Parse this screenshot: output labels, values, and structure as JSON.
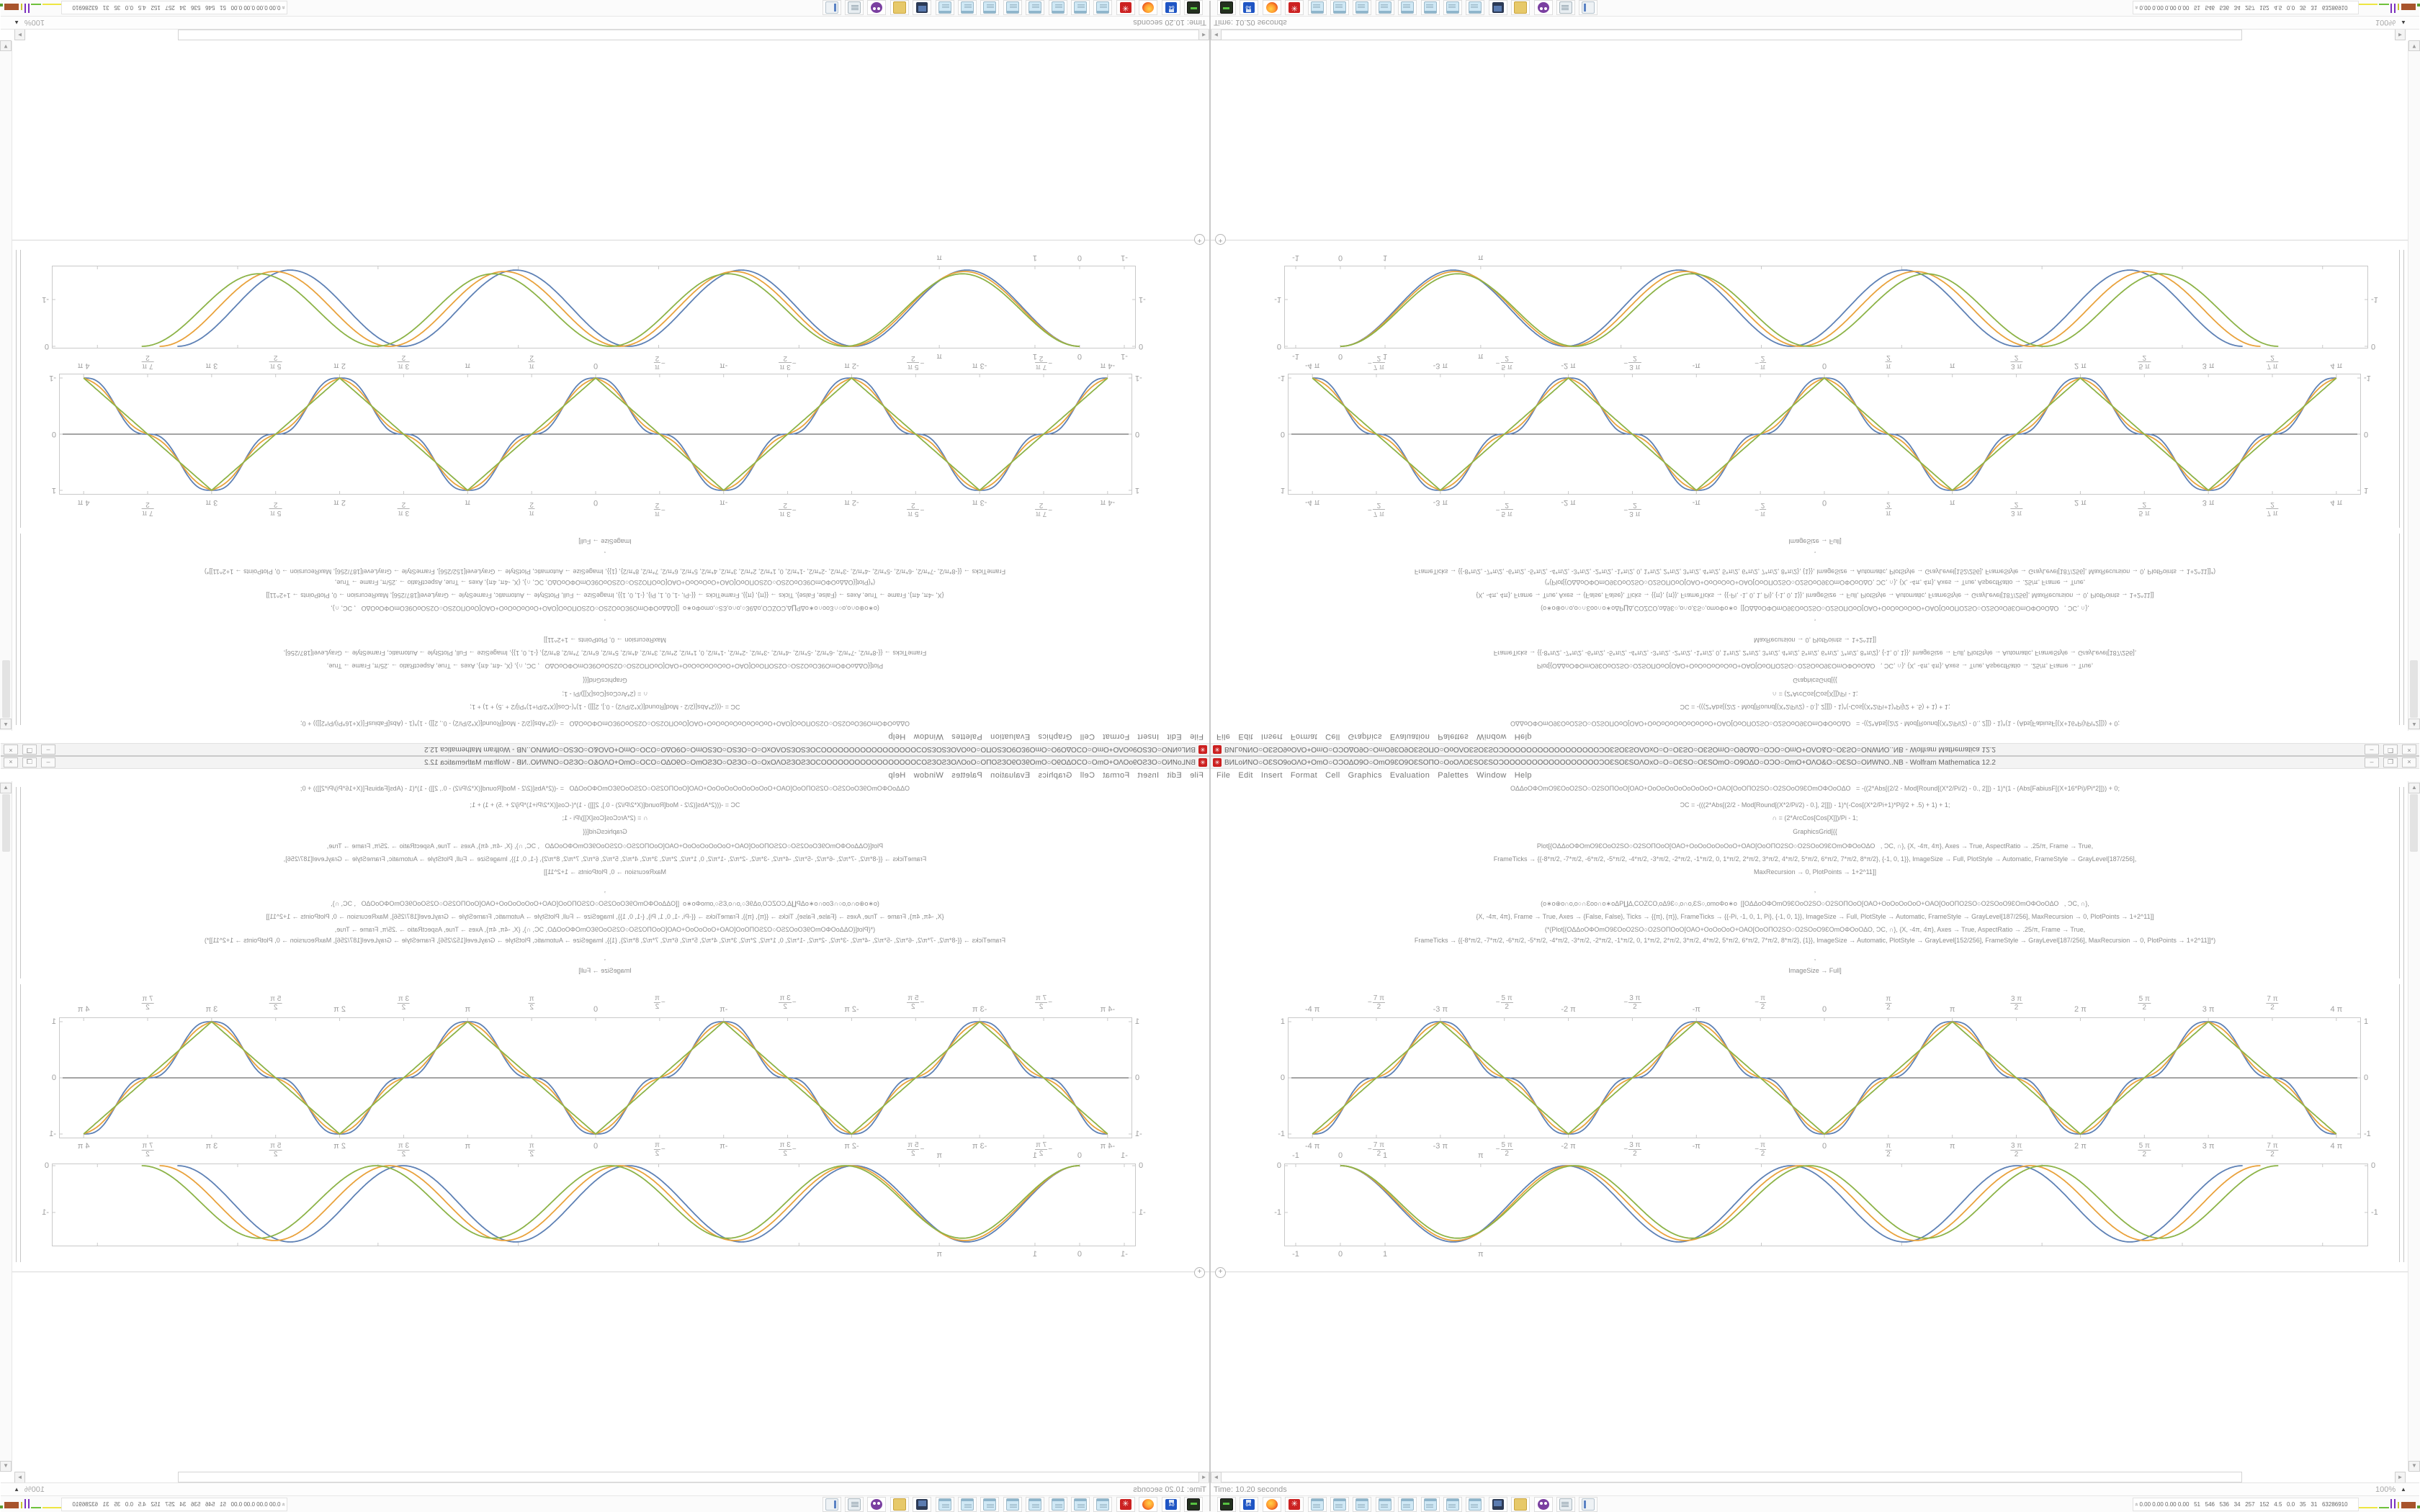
{
  "window": {
    "title": "BИLoИNΟ○ΟƐSΟ9oΟΛΟ+ΟmΟ○ΟƆΟΔΟ9Ο○ΟmΟ9ƐΟ9ΟƐSΟΠΟ○ΟoΟΛΟƐSΟƐSΟƆΟΟΟΟΟΟΟΟΟΟΟΟΟΟΟΟΟƆΟƐSΟƐSΟΛΟxΟ○Ο○ΟƐSΟ○ΟƐSΟmΟ○Ο9ΟΔΟ○ΟƆΟ○ΟmΟ+ΟΛΟ&Ο○ΟƐSΟ○ΟИWNΟ..NB - Wolfram Mathematica 12.2",
    "app_icon": "mathematica-spikey",
    "controls": {
      "minimize": "–",
      "restore": "❐",
      "close": "×"
    },
    "menu": [
      "File",
      "Edit",
      "Insert",
      "Format",
      "Cell",
      "Graphics",
      "Evaluation",
      "Palettes",
      "Window",
      "Help"
    ]
  },
  "code": {
    "lines": [
      "ΟΔΔοΟΦΟmΟ9ƐΟοΟ2SΟ○Ο2SΟΠΟοΟ[ΟΑΟ+ΟοΟοΟοΟοΟοΟοΟοΟ+ΟΑΟ[ΟοΟΠΟ2SΟ○Ο2SΟοΟ9ƐΟmΟΦΟοΟΔΟ   = -((2*Abs[(2/2 - Mod[Round[(X*2/Pi/2) - 0., 2]]) - 1)*(1 - (Abs[FabiusF[(X+16*Pi)/Pi*2]])) + 0;",
      "ƆC = -(((2*Abs[(2/2 - Mod[Round[(X*2/Pi/2) - 0.], 2]]]) - 1)*(-Cos[(X*2/Pi+1)*Pi]/2 + .5) + 1) + 1;",
      "∩ = (2*ArcCos[Cos[X]])/Pi - 1;",
      "GraphicsGrid[{{",
      "Plot[{ΟΔΔοΟΦΟmΟ9ƐΟοΟ2SΟ○Ο2SΟΠΟοΟ[ΟΑΟ+ΟοΟοΟοΟοΟοΟ+ΟΑΟ[ΟοΟΠΟ2SΟ○Ο2SΟοΟ9ƐΟmΟΦΟοΟΔΟ   , ƆC, ∩}, {X, -4π, 4π}, Axes → True, AspectRatio → .25/π, Frame → True,",
      "FrameTicks → {{-8*π/2, -7*π/2, -6*π/2, -5*π/2, -4*π/2, -3*π/2, -2*π/2, -1*π/2, 0, 1*π/2, 2*π/2, 3*π/2, 4*π/2, 5*π/2, 6*π/2, 7*π/2, 8*π/2}, {-1, 0, 1}}, ImageSize → Full, PlotStyle → Automatic, FrameStyle → GrayLevel[187/256],",
      "MaxRecursion → 0, PlotPoints → 1+2^11]]",
      ",",
      "(ο∗ο⊕ο∩ο‚ο○∩Ɛοο∩ο∗οΔΡ∐Δ‚CΟZCΟ‚οΔ9Ɛ○‚ο∩ο‚ƐS○‚οmοΦο∗ο  [[ΟΔΔοΟΦΟmΟ9ƐΟοΟ2SΟ○Ο2SΟΠΟοΟ[ΟΑΟ+ΟοΟοΟοΟοΟ+ΟΑΟ[ΟοΟΠΟ2SΟ○Ο2SΟοΟ9ƐΟmΟΦΟοΟΔΟ   , ƆC, ∩},",
      "{X, -4π, 4π}, Frame → True, Axes → {False, False}, Ticks → {{π}, {π}}, FrameTicks → {{-Pi, -1, 0, 1, Pi}, {-1, 0, 1}}, ImageSize → Full, PlotStyle → Automatic, FrameStyle → GrayLevel[187/256], MaxRecursion → 0, PlotPoints → 1+2^11]]",
      "(*{Plot[{ΟΔΔοΟΦΟmΟ9ƐΟοΟ2SΟ○Ο2SΟΠΟοΟ[ΟΑΟ+ΟοΟοΟοΟ+ΟΑΟ[ΟοΟΠΟ2SΟ○Ο2SΟοΟ9ƐΟmΟΦΟοΟΔΟ, ƆC, ∩}, {X, -4π, 4π}, Axes → True, AspectRatio → .25/π, Frame → True,",
      "FrameTicks → {{-8*π/2, -7*π/2, -6*π/2, -5*π/2, -4*π/2, -3*π/2, -2*π/2, -1*π/2, 0, 1*π/2, 2*π/2, 3*π/2, 4*π/2, 5*π/2, 6*π/2, 7*π/2, 8*π/2}, {1}}, ImageSize → Automatic, PlotStyle → GrayLevel[152/256], FrameStyle → GrayLevel[187/256], MaxRecursion → 0, PlotPoints → 1+2^11]]*)",
      ",",
      "ImageSize → Full]"
    ]
  },
  "status": {
    "time": "Time: 10.20 seconds",
    "zoom": "100%",
    "zoom_arrow": "▲"
  },
  "taskbar": {
    "icons": [
      "emulator",
      "c64-floppy",
      "firefox",
      "redgear",
      "notepad",
      "notepad",
      "notepad",
      "notepad",
      "notepad",
      "notepad",
      "notepad",
      "notepad",
      "monitor",
      "folder",
      "owl",
      "scroll",
      "doc2"
    ],
    "redgear_glyph": "✳",
    "tray_text": "0.00 0.00 0.00 0.00   51   546   536   34   257   152   4.5   0.0   35   31   63286910",
    "tray_chevron": "»",
    "tray_charts": [
      {
        "type": "line",
        "color": "#ede642",
        "w": 26
      },
      {
        "type": "line",
        "color": "#6fc13a",
        "w": 14
      },
      {
        "type": "spikes",
        "color": "#7b2fbe"
      },
      {
        "type": "spike",
        "color": "#c9c32e"
      },
      {
        "type": "box",
        "color": "#a8542c",
        "w": 20,
        "h": 9
      },
      {
        "type": "patch",
        "color": "#5a9e2f",
        "w": 10
      }
    ]
  },
  "chart_data": [
    {
      "type": "line",
      "id": "rowA",
      "title": "",
      "xlabel": "",
      "ylabel": "",
      "x_range": [
        -13.17,
        13.17
      ],
      "y_range": [
        -1.077,
        1.077
      ],
      "axis_y0": true,
      "frame_color": "#c9c9c9",
      "axis_color": "#4a4a4a",
      "wave": "triangle-flatten",
      "period": "2π",
      "x_ticks": [
        {
          "v": -12.566,
          "label": "-4 π"
        },
        {
          "v": -10.996,
          "frac": [
            "7 π",
            "2"
          ],
          "neg": true
        },
        {
          "v": -9.4248,
          "label": "-3 π"
        },
        {
          "v": -7.854,
          "frac": [
            "5 π",
            "2"
          ],
          "neg": true
        },
        {
          "v": -6.2832,
          "label": "-2 π"
        },
        {
          "v": -4.7124,
          "frac": [
            "3 π",
            "2"
          ],
          "neg": true
        },
        {
          "v": -3.1416,
          "label": "-π"
        },
        {
          "v": -1.5708,
          "frac": [
            "π",
            "2"
          ],
          "neg": true
        },
        {
          "v": 0,
          "label": "0"
        },
        {
          "v": 1.5708,
          "frac": [
            "π",
            "2"
          ]
        },
        {
          "v": 3.1416,
          "label": "π"
        },
        {
          "v": 4.7124,
          "frac": [
            "3 π",
            "2"
          ]
        },
        {
          "v": 6.2832,
          "label": "2 π"
        },
        {
          "v": 7.854,
          "frac": [
            "5 π",
            "2"
          ]
        },
        {
          "v": 9.4248,
          "label": "3 π"
        },
        {
          "v": 10.996,
          "frac": [
            "7 π",
            "2"
          ]
        },
        {
          "v": 12.566,
          "label": "4 π"
        }
      ],
      "y_ticks": [
        {
          "v": 1,
          "label": "1"
        },
        {
          "v": 0,
          "label": "0"
        },
        {
          "v": -1,
          "label": "-1"
        }
      ],
      "series": [
        {
          "name": "smoothed-square-blend",
          "color": "#5e81b5",
          "flatten": 1.0
        },
        {
          "name": "intermediate-blend",
          "color": "#e9a23c",
          "flatten": 0.55
        },
        {
          "name": "triangle-wave",
          "color": "#8cb347",
          "flatten": 0.0
        }
      ]
    },
    {
      "type": "line",
      "id": "rowB",
      "title": "",
      "xlabel": "",
      "ylabel": "",
      "x_range": [
        -1.258,
        23.01
      ],
      "y_range": [
        -1.724,
        0.046
      ],
      "axis_y0": false,
      "frame_color": "#c9c9c9",
      "wave": "raised-cos-down",
      "x_ticks": [
        {
          "v": -1,
          "label": "-1"
        },
        {
          "v": 0,
          "label": "0"
        },
        {
          "v": 1,
          "label": "1"
        },
        {
          "v": 3.1416,
          "label": "π"
        }
      ],
      "minor_x_ticks": [
        6.2832,
        9.4248,
        12.566,
        15.708,
        18.85,
        21.99
      ],
      "y_ticks": [
        {
          "v": 0,
          "label": "0"
        },
        {
          "v": -1,
          "label": "-1"
        }
      ],
      "series": [
        {
          "name": "phase-a",
          "color": "#5e81b5",
          "period": 5.05,
          "amp": 1.63
        },
        {
          "name": "phase-b",
          "color": "#e9a23c",
          "period": 5.15,
          "amp": 1.6
        },
        {
          "name": "phase-c",
          "color": "#8cb347",
          "period": 5.25,
          "amp": 1.55
        }
      ]
    }
  ]
}
